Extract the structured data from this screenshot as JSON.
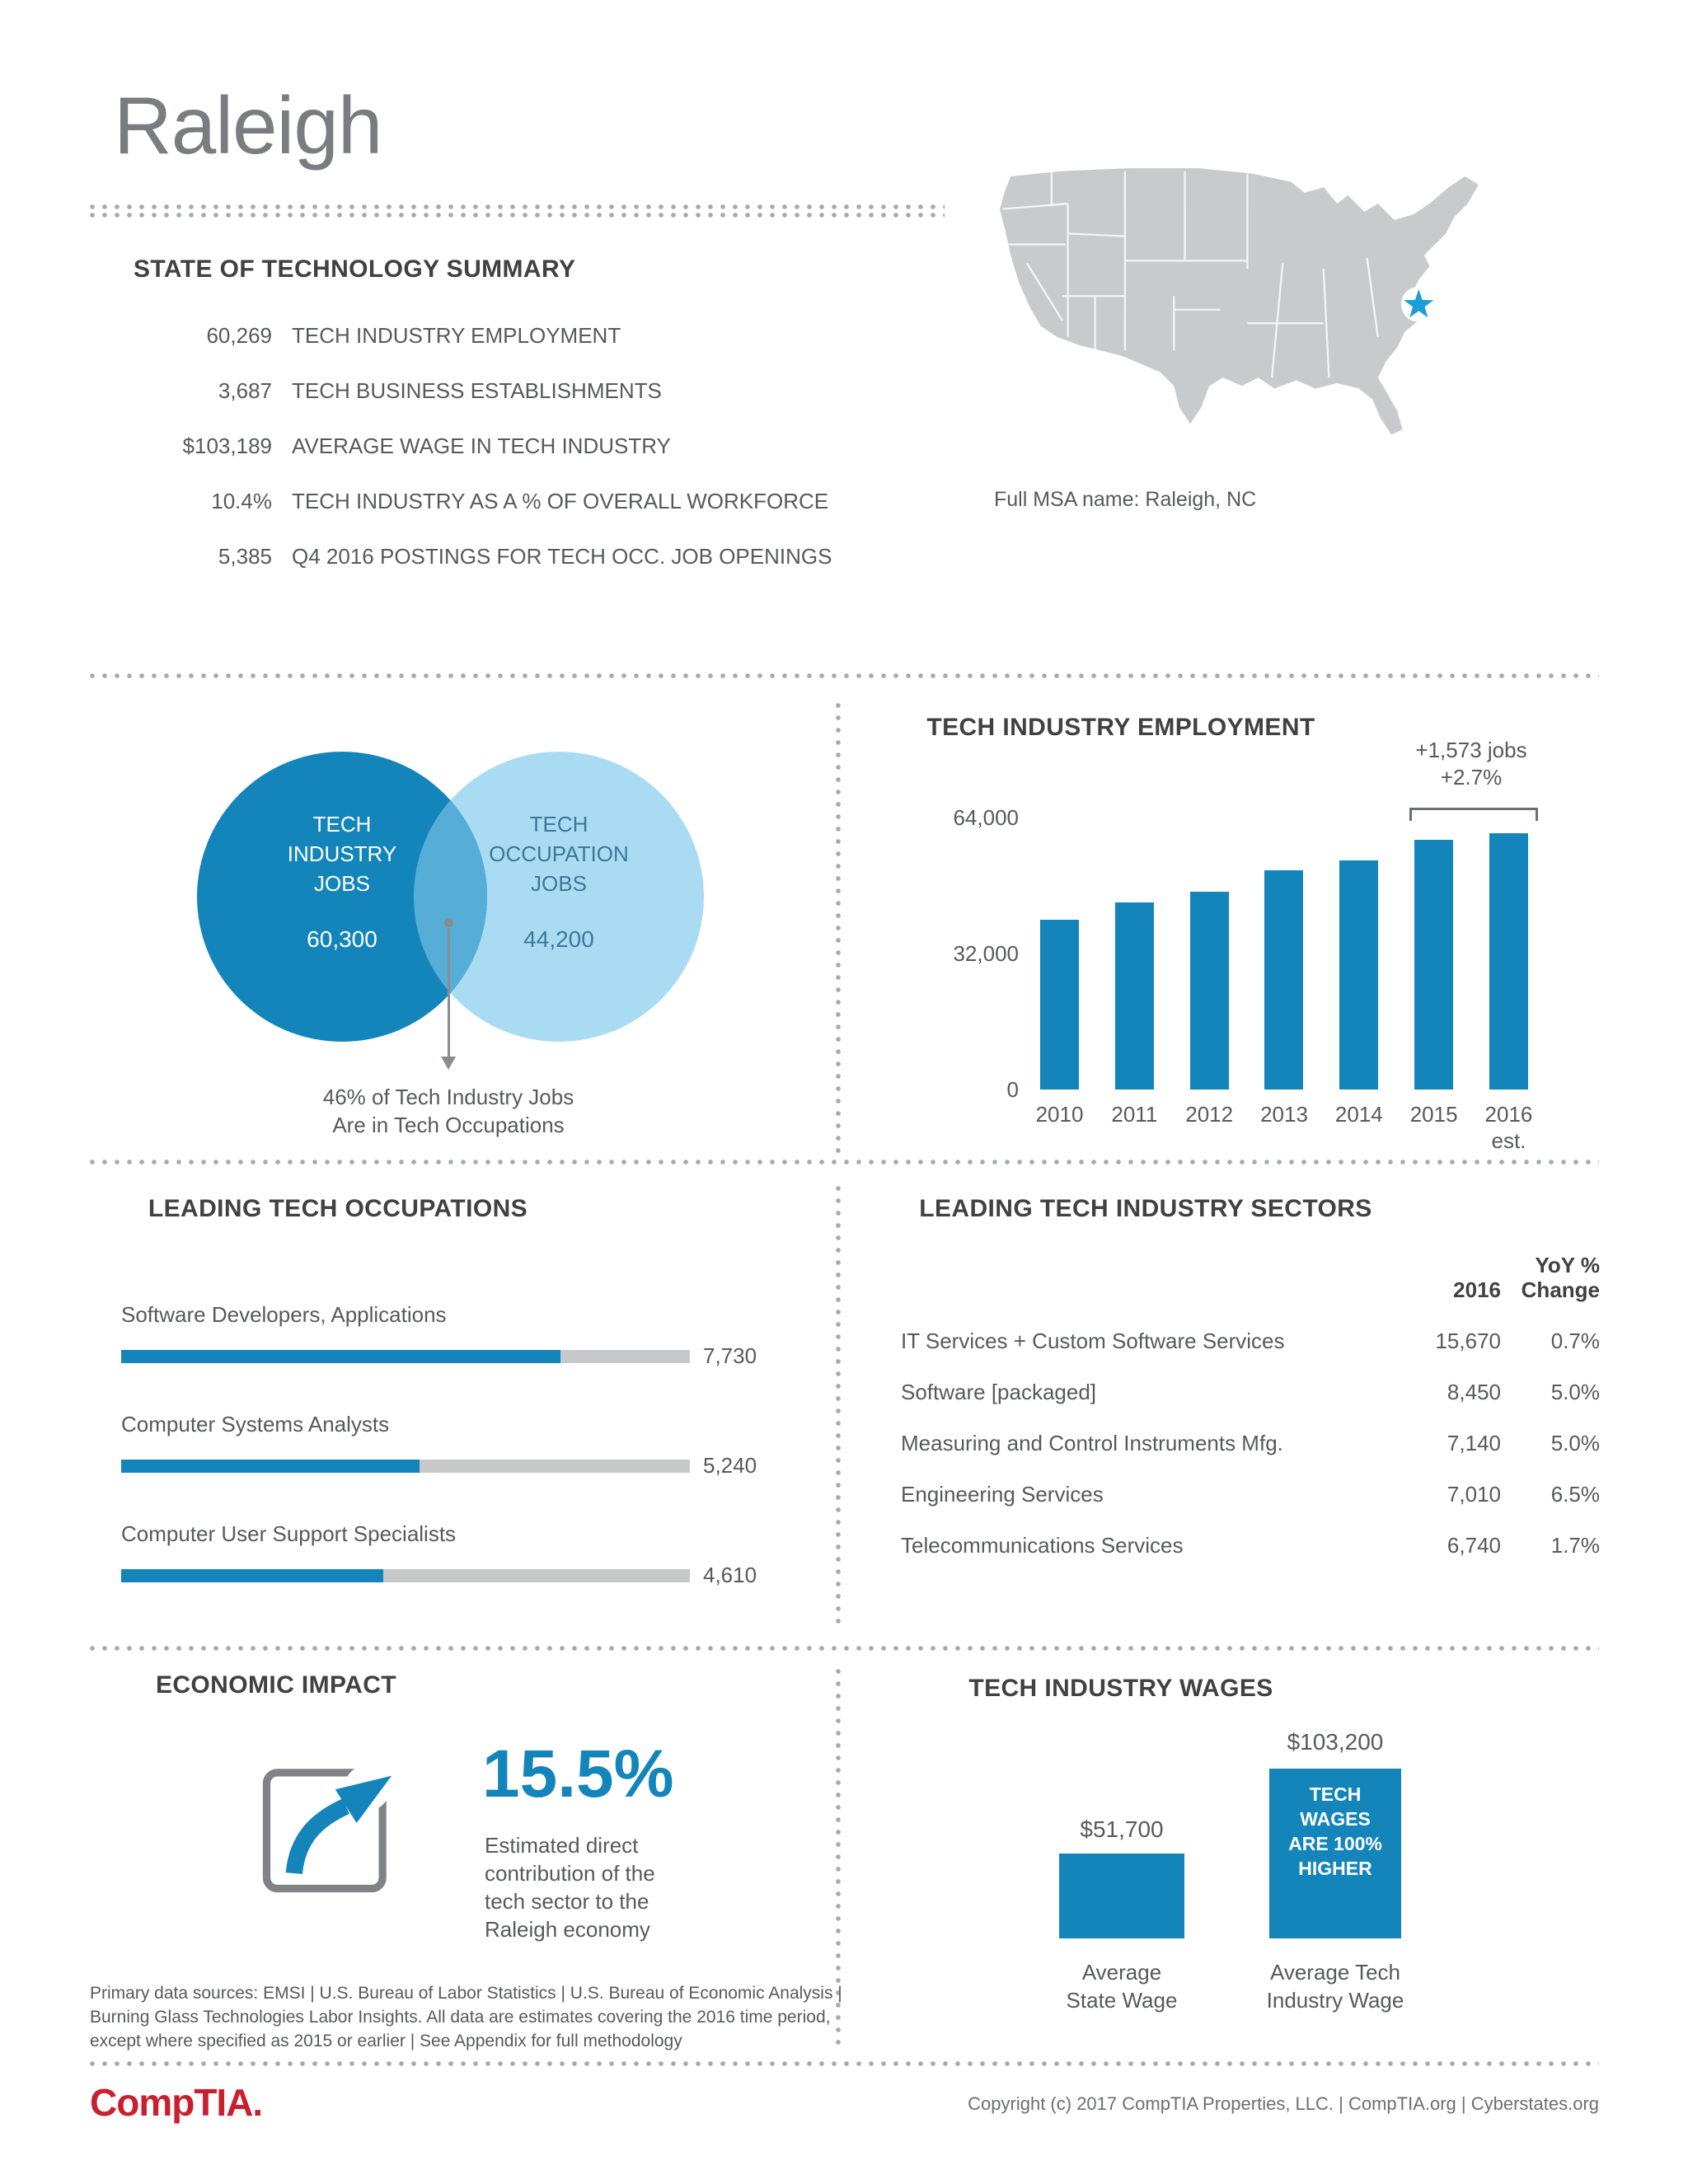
{
  "header": {
    "title": "Raleigh",
    "map_caption": "Full MSA name: Raleigh, NC"
  },
  "summary": {
    "heading": "STATE OF TECHNOLOGY SUMMARY",
    "rows": [
      {
        "value": "60,269",
        "label": "TECH INDUSTRY EMPLOYMENT"
      },
      {
        "value": "3,687",
        "label": "TECH BUSINESS ESTABLISHMENTS"
      },
      {
        "value": "$103,189",
        "label": "AVERAGE WAGE IN TECH INDUSTRY"
      },
      {
        "value": "10.4%",
        "label": "TECH INDUSTRY AS A % OF OVERALL WORKFORCE"
      },
      {
        "value": "5,385",
        "label": "Q4 2016 POSTINGS FOR TECH OCC. JOB OPENINGS"
      }
    ]
  },
  "venn": {
    "left_label": "TECH\nINDUSTRY\nJOBS",
    "left_value": "60,300",
    "right_label": "TECH\nOCCUPATION\nJOBS",
    "right_value": "44,200",
    "note": "46% of Tech Industry Jobs\nAre in Tech Occupations"
  },
  "employment": {
    "heading": "TECH INDUSTRY EMPLOYMENT",
    "annotation": "+1,573 jobs\n+2.7%",
    "y_ticks": [
      "64,000",
      "32,000",
      "0"
    ]
  },
  "occupations": {
    "heading": "LEADING TECH OCCUPATIONS",
    "rows": [
      {
        "label": "Software Developers, Applications",
        "value": "7,730"
      },
      {
        "label": "Computer Systems Analysts",
        "value": "5,240"
      },
      {
        "label": "Computer User Support Specialists",
        "value": "4,610"
      }
    ]
  },
  "sectors": {
    "heading": "LEADING TECH INDUSTRY SECTORS",
    "col_year": "2016",
    "col_change": "YoY %\nChange",
    "rows": [
      {
        "name": "IT Services + Custom Software Services",
        "value": "15,670",
        "change": "0.7%"
      },
      {
        "name": "Software [packaged]",
        "value": "8,450",
        "change": "5.0%"
      },
      {
        "name": "Measuring and Control Instruments Mfg.",
        "value": "7,140",
        "change": "5.0%"
      },
      {
        "name": "Engineering Services",
        "value": "7,010",
        "change": "6.5%"
      },
      {
        "name": "Telecommunications Services",
        "value": "6,740",
        "change": "1.7%"
      }
    ]
  },
  "economic": {
    "heading": "ECONOMIC IMPACT",
    "percent": "15.5%",
    "description": "Estimated direct\ncontribution of the\ntech sector to the\nRaleigh economy"
  },
  "wages": {
    "heading": "TECH INDUSTRY WAGES",
    "state_value": "$51,700",
    "state_caption": "Average\nState Wage",
    "tech_value": "$103,200",
    "tech_badge": "TECH\nWAGES\nARE 100%\nHIGHER",
    "tech_caption": "Average Tech\nIndustry Wage"
  },
  "footer": {
    "sources": "Primary data sources: EMSI | U.S. Bureau of Labor Statistics | U.S. Bureau of Economic Analysis |\nBurning Glass Technologies Labor Insights. All data are estimates covering the 2016 time period,\nexcept where specified as 2015 or earlier | See Appendix for full methodology",
    "logo": "CompTIA.",
    "copyright": "Copyright (c) 2017 CompTIA Properties, LLC.  |  CompTIA.org  |  Cyberstates.org"
  },
  "colors": {
    "primary_blue": "#1385bb",
    "light_blue": "#a9dcf3",
    "overlap_blue": "#56aed6",
    "track_gray": "#c7c8ca",
    "text_gray": "#58595b",
    "heading_gray": "#414042",
    "logo_red": "#c8202f",
    "map_gray": "#c9cacb",
    "star_blue": "#1e9ed8"
  },
  "chart_data": [
    {
      "id": "employment",
      "type": "bar",
      "title": "TECH INDUSTRY EMPLOYMENT",
      "categories": [
        "2010",
        "2011",
        "2012",
        "2013",
        "2014",
        "2015",
        "2016\nest."
      ],
      "values": [
        40000,
        44000,
        46500,
        51500,
        54000,
        58700,
        60269
      ],
      "xlabel": "",
      "ylabel": "",
      "ylim": [
        0,
        64000
      ],
      "y_ticks": [
        0,
        32000,
        64000
      ],
      "grid": false,
      "annotation": "+1,573 jobs +2.7% (2015 to 2016 est.)"
    },
    {
      "id": "occupations",
      "type": "bar",
      "orientation": "horizontal",
      "title": "LEADING TECH OCCUPATIONS",
      "categories": [
        "Software Developers, Applications",
        "Computer Systems Analysts",
        "Computer User Support Specialists"
      ],
      "values": [
        7730,
        5240,
        4610
      ],
      "xlim": [
        0,
        10000
      ]
    },
    {
      "id": "sectors",
      "type": "table",
      "title": "LEADING TECH INDUSTRY SECTORS",
      "columns": [
        "Sector",
        "2016",
        "YoY % Change"
      ],
      "rows": [
        [
          "IT Services + Custom Software Services",
          "15,670",
          "0.7%"
        ],
        [
          "Software [packaged]",
          "8,450",
          "5.0%"
        ],
        [
          "Measuring and Control Instruments Mfg.",
          "7,140",
          "5.0%"
        ],
        [
          "Engineering Services",
          "7,010",
          "6.5%"
        ],
        [
          "Telecommunications Services",
          "6,740",
          "1.7%"
        ]
      ]
    },
    {
      "id": "venn",
      "type": "venn",
      "sets": [
        {
          "label": "TECH INDUSTRY JOBS",
          "value": 60300
        },
        {
          "label": "TECH OCCUPATION JOBS",
          "value": 44200
        }
      ],
      "note": "46% of Tech Industry Jobs Are in Tech Occupations"
    },
    {
      "id": "wages",
      "type": "bar",
      "title": "TECH INDUSTRY WAGES",
      "categories": [
        "Average State Wage",
        "Average Tech Industry Wage"
      ],
      "values": [
        51700,
        103200
      ],
      "annotation": "TECH WAGES ARE 100% HIGHER"
    }
  ]
}
